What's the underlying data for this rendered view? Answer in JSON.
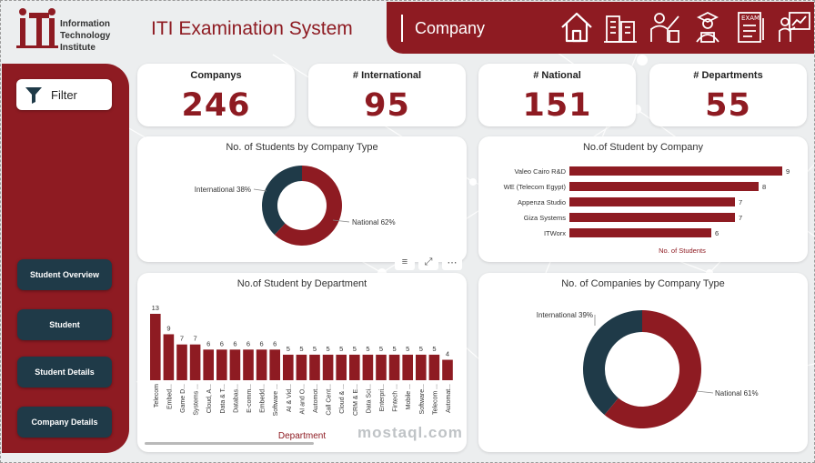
{
  "header": {
    "logo_lines": [
      "Information",
      "Technology",
      "Institute"
    ],
    "title": "ITI Examination System",
    "page_name": "Company",
    "nav_icons": [
      "home-icon",
      "company-building-icon",
      "instructor-icon",
      "student-icon",
      "exam-icon",
      "presentation-icon"
    ]
  },
  "sidebar": {
    "filter_label": "Filter",
    "buttons": [
      "Student Overview",
      "Student",
      "Student Details",
      "Company Details"
    ]
  },
  "kpis": [
    {
      "label": "Companys",
      "value": "246"
    },
    {
      "label": "# International",
      "value": "95"
    },
    {
      "label": "# National",
      "value": "151"
    },
    {
      "label": "# Departments",
      "value": "55"
    }
  ],
  "colors": {
    "accent": "#8e1b22",
    "navy": "#1f3a48"
  },
  "watermark": "mostaql.com",
  "chart_data": [
    {
      "type": "pie",
      "title": "No. of Students by Company Type",
      "labels": [
        "International",
        "National"
      ],
      "values": [
        38,
        62
      ],
      "value_labels": [
        "International 38%",
        "National 62%"
      ]
    },
    {
      "type": "bar",
      "orientation": "horizontal",
      "title": "No.of Student by Company",
      "categories": [
        "Valeo Cairo R&D",
        "WE (Telecom Egypt)",
        "Appenza Studio",
        "Giza Systems",
        "ITWorx"
      ],
      "values": [
        9,
        8,
        7,
        7,
        6
      ],
      "xlabel": "No. of Students",
      "xlim": [
        0,
        9
      ]
    },
    {
      "type": "bar",
      "title": "No.of Student by Department",
      "categories": [
        "Telecom",
        "Embed...",
        "Game D...",
        "Systems ...",
        "Cloud, A...",
        "Data & T...",
        "Databas...",
        "E-comm...",
        "Embedd...",
        "Software ...",
        "AI & Vid...",
        "AI and O...",
        "Automot...",
        "Call Cent...",
        "Cloud & ...",
        "CRM & E...",
        "Data Sci...",
        "Enterpri...",
        "Fintech ...",
        "Mobile ...",
        "Software...",
        "Telecom ...",
        "Automat..."
      ],
      "values": [
        13,
        9,
        7,
        7,
        6,
        6,
        6,
        6,
        6,
        6,
        5,
        5,
        5,
        5,
        5,
        5,
        5,
        5,
        5,
        5,
        5,
        5,
        4
      ],
      "xlabel": "Department",
      "ylim": [
        0,
        13
      ]
    },
    {
      "type": "pie",
      "title": "No. of Companies by Company Type",
      "labels": [
        "International",
        "National"
      ],
      "values": [
        39,
        61
      ],
      "value_labels": [
        "International 39%",
        "National 61%"
      ]
    }
  ]
}
